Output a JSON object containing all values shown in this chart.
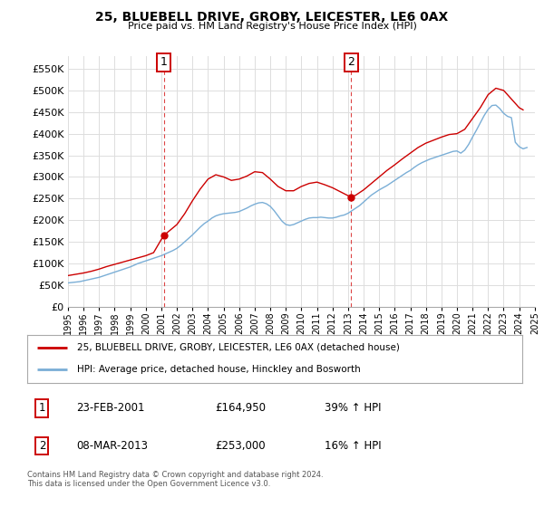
{
  "title": "25, BLUEBELL DRIVE, GROBY, LEICESTER, LE6 0AX",
  "subtitle": "Price paid vs. HM Land Registry's House Price Index (HPI)",
  "legend_line1": "25, BLUEBELL DRIVE, GROBY, LEICESTER, LE6 0AX (detached house)",
  "legend_line2": "HPI: Average price, detached house, Hinckley and Bosworth",
  "annotation1_label": "1",
  "annotation1_date": "23-FEB-2001",
  "annotation1_price": "£164,950",
  "annotation1_hpi": "39% ↑ HPI",
  "annotation2_label": "2",
  "annotation2_date": "08-MAR-2013",
  "annotation2_price": "£253,000",
  "annotation2_hpi": "16% ↑ HPI",
  "footer": "Contains HM Land Registry data © Crown copyright and database right 2024.\nThis data is licensed under the Open Government Licence v3.0.",
  "red_color": "#cc0000",
  "blue_color": "#7aaed6",
  "vline_color": "#dd4444",
  "annotation_box_color": "#cc0000",
  "grid_color": "#dddddd",
  "bg_color": "#ffffff",
  "ylim": [
    0,
    580000
  ],
  "yticks": [
    0,
    50000,
    100000,
    150000,
    200000,
    250000,
    300000,
    350000,
    400000,
    450000,
    500000,
    550000
  ],
  "ytick_labels": [
    "£0",
    "£50K",
    "£100K",
    "£150K",
    "£200K",
    "£250K",
    "£300K",
    "£350K",
    "£400K",
    "£450K",
    "£500K",
    "£550K"
  ],
  "hpi_x": [
    1995.0,
    1995.25,
    1995.5,
    1995.75,
    1996.0,
    1996.25,
    1996.5,
    1996.75,
    1997.0,
    1997.25,
    1997.5,
    1997.75,
    1998.0,
    1998.25,
    1998.5,
    1998.75,
    1999.0,
    1999.25,
    1999.5,
    1999.75,
    2000.0,
    2000.25,
    2000.5,
    2000.75,
    2001.0,
    2001.25,
    2001.5,
    2001.75,
    2002.0,
    2002.25,
    2002.5,
    2002.75,
    2003.0,
    2003.25,
    2003.5,
    2003.75,
    2004.0,
    2004.25,
    2004.5,
    2004.75,
    2005.0,
    2005.25,
    2005.5,
    2005.75,
    2006.0,
    2006.25,
    2006.5,
    2006.75,
    2007.0,
    2007.25,
    2007.5,
    2007.75,
    2008.0,
    2008.25,
    2008.5,
    2008.75,
    2009.0,
    2009.25,
    2009.5,
    2009.75,
    2010.0,
    2010.25,
    2010.5,
    2010.75,
    2011.0,
    2011.25,
    2011.5,
    2011.75,
    2012.0,
    2012.25,
    2012.5,
    2012.75,
    2013.0,
    2013.25,
    2013.5,
    2013.75,
    2014.0,
    2014.25,
    2014.5,
    2014.75,
    2015.0,
    2015.25,
    2015.5,
    2015.75,
    2016.0,
    2016.25,
    2016.5,
    2016.75,
    2017.0,
    2017.25,
    2017.5,
    2017.75,
    2018.0,
    2018.25,
    2018.5,
    2018.75,
    2019.0,
    2019.25,
    2019.5,
    2019.75,
    2020.0,
    2020.25,
    2020.5,
    2020.75,
    2021.0,
    2021.25,
    2021.5,
    2021.75,
    2022.0,
    2022.25,
    2022.5,
    2022.75,
    2023.0,
    2023.25,
    2023.5,
    2023.75,
    2024.0,
    2024.25,
    2024.5
  ],
  "hpi_y": [
    55000,
    56000,
    57000,
    58000,
    60000,
    62000,
    64000,
    66000,
    68000,
    71000,
    74000,
    77000,
    80000,
    83000,
    86000,
    89000,
    92000,
    96000,
    100000,
    103000,
    106000,
    109000,
    112000,
    115000,
    118000,
    122000,
    126000,
    130000,
    135000,
    142000,
    150000,
    158000,
    166000,
    175000,
    184000,
    192000,
    198000,
    205000,
    210000,
    213000,
    215000,
    216000,
    217000,
    218000,
    220000,
    224000,
    228000,
    233000,
    237000,
    240000,
    241000,
    238000,
    232000,
    222000,
    210000,
    198000,
    190000,
    188000,
    190000,
    194000,
    198000,
    202000,
    205000,
    206000,
    206000,
    207000,
    206000,
    205000,
    205000,
    207000,
    210000,
    212000,
    216000,
    222000,
    228000,
    234000,
    242000,
    250000,
    258000,
    264000,
    270000,
    275000,
    280000,
    286000,
    292000,
    298000,
    304000,
    310000,
    315000,
    322000,
    328000,
    333000,
    337000,
    341000,
    344000,
    347000,
    350000,
    353000,
    356000,
    359000,
    360000,
    355000,
    362000,
    375000,
    392000,
    408000,
    425000,
    442000,
    456000,
    465000,
    466000,
    458000,
    447000,
    440000,
    437000,
    380000,
    370000,
    365000,
    368000
  ],
  "price_x": [
    1995.0,
    1995.5,
    1996.0,
    1996.5,
    1997.0,
    1997.5,
    1998.0,
    1998.5,
    1999.0,
    1999.5,
    2000.0,
    2000.5,
    2001.15,
    2001.5,
    2002.0,
    2002.5,
    2003.0,
    2003.5,
    2004.0,
    2004.5,
    2005.0,
    2005.5,
    2006.0,
    2006.5,
    2007.0,
    2007.5,
    2008.0,
    2008.5,
    2009.0,
    2009.5,
    2010.0,
    2010.5,
    2011.0,
    2011.5,
    2012.0,
    2013.2,
    2013.5,
    2014.0,
    2014.5,
    2015.0,
    2015.5,
    2016.0,
    2016.5,
    2017.0,
    2017.5,
    2018.0,
    2018.5,
    2019.0,
    2019.5,
    2020.0,
    2020.5,
    2021.0,
    2021.5,
    2022.0,
    2022.5,
    2023.0,
    2023.5,
    2024.0,
    2024.25
  ],
  "price_y": [
    72000,
    75000,
    78000,
    82000,
    87000,
    93000,
    98000,
    103000,
    108000,
    113000,
    118000,
    125000,
    164950,
    175000,
    190000,
    215000,
    245000,
    272000,
    295000,
    305000,
    300000,
    292000,
    295000,
    302000,
    312000,
    310000,
    295000,
    278000,
    268000,
    268000,
    278000,
    285000,
    288000,
    282000,
    275000,
    253000,
    258000,
    270000,
    285000,
    300000,
    315000,
    328000,
    342000,
    355000,
    368000,
    378000,
    385000,
    392000,
    398000,
    400000,
    410000,
    435000,
    460000,
    490000,
    505000,
    500000,
    480000,
    460000,
    455000
  ],
  "sale1_x": 2001.15,
  "sale1_y": 164950,
  "sale2_x": 2013.2,
  "sale2_y": 253000,
  "xmin": 1995.0,
  "xmax": 2025.0,
  "xtick_years": [
    1995,
    1996,
    1997,
    1998,
    1999,
    2000,
    2001,
    2002,
    2003,
    2004,
    2005,
    2006,
    2007,
    2008,
    2009,
    2010,
    2011,
    2012,
    2013,
    2014,
    2015,
    2016,
    2017,
    2018,
    2019,
    2020,
    2021,
    2022,
    2023,
    2024,
    2025
  ]
}
